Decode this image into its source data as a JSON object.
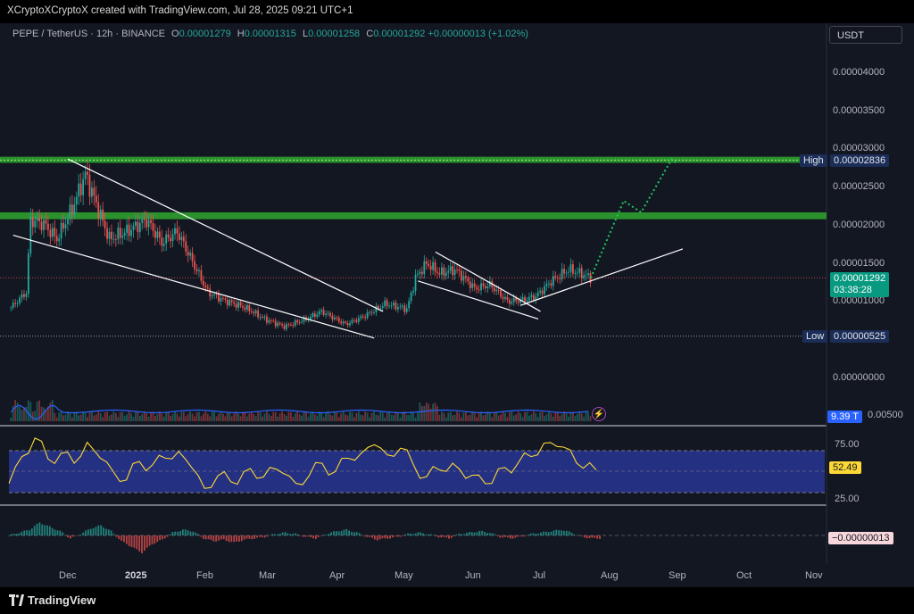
{
  "header": {
    "credit": "XCryptoXCryptoX created with TradingView.com, Jul 28, 2025 09:21 UTC+1"
  },
  "legend": {
    "symbol": "PEPE / TetherUS · 12h · BINANCE",
    "o_label": "O",
    "o": "0.00001279",
    "h_label": "H",
    "h": "0.00001315",
    "l_label": "L",
    "l": "0.00001258",
    "c_label": "C",
    "c": "0.00001292",
    "change": "+0.00000013 (+1.02%)"
  },
  "currency": "USDT",
  "price_axis": [
    "0.00004000",
    "0.00003500",
    "0.00003000",
    "0.00002500",
    "0.00002000",
    "0.00001500",
    "0.00001000",
    "0.00000000"
  ],
  "tags": {
    "high_label": "High",
    "high_value": "0.00002836",
    "last_price": "0.00001292",
    "countdown": "03:38:28",
    "low_label": "Low",
    "low_value": "0.00000525",
    "volume": "9.39 T",
    "volume_axis": "0.00500",
    "rsi_value": "52.49",
    "rsi_upper": "75.00",
    "rsi_lower": "25.00",
    "macd_value": "−0.00000013"
  },
  "time_axis": [
    {
      "label": "Dec",
      "bold": false
    },
    {
      "label": "2025",
      "bold": true
    },
    {
      "label": "Feb",
      "bold": false
    },
    {
      "label": "Mar",
      "bold": false
    },
    {
      "label": "Apr",
      "bold": false
    },
    {
      "label": "May",
      "bold": false
    },
    {
      "label": "Jun",
      "bold": false
    },
    {
      "label": "Jul",
      "bold": false
    },
    {
      "label": "Aug",
      "bold": false
    },
    {
      "label": "Sep",
      "bold": false
    },
    {
      "label": "Oct",
      "bold": false
    },
    {
      "label": "Nov",
      "bold": false
    }
  ],
  "footer": {
    "brand": "TradingView"
  },
  "colors": {
    "background": "#131722",
    "up": "#26a69a",
    "down": "#ef5350",
    "zone": "#2e9e2e",
    "projection": "#22c55e",
    "trendline": "#ffffff",
    "rsi_line": "#fdd835",
    "rsi_band": "#283593",
    "volume_ma": "#2962ff"
  },
  "chart_data": {
    "type": "candlestick",
    "symbol": "PEPE / TetherUS",
    "interval": "12h",
    "exchange": "BINANCE",
    "y_range": [
      0.0,
      4.3e-05
    ],
    "key_levels": {
      "high": 2.836e-05,
      "low": 5.25e-06,
      "last": 1.292e-05
    },
    "resistance_zones": [
      {
        "from": 2.8e-05,
        "to": 2.88e-05
      },
      {
        "from": 2.06e-05,
        "to": 2.15e-05
      }
    ],
    "price_path": [
      {
        "date": "2024-11-05",
        "price": 9e-06
      },
      {
        "date": "2024-11-12",
        "price": 1.1e-05
      },
      {
        "date": "2024-11-14",
        "price": 2.05e-05
      },
      {
        "date": "2024-11-20",
        "price": 2e-05
      },
      {
        "date": "2024-11-26",
        "price": 1.8e-05
      },
      {
        "date": "2024-12-03",
        "price": 2.2e-05
      },
      {
        "date": "2024-12-09",
        "price": 2.65e-05
      },
      {
        "date": "2024-12-16",
        "price": 2.1e-05
      },
      {
        "date": "2024-12-20",
        "price": 1.8e-05
      },
      {
        "date": "2024-12-28",
        "price": 1.9e-05
      },
      {
        "date": "2025-01-06",
        "price": 2.05e-05
      },
      {
        "date": "2025-01-13",
        "price": 1.75e-05
      },
      {
        "date": "2025-01-20",
        "price": 1.9e-05
      },
      {
        "date": "2025-01-27",
        "price": 1.5e-05
      },
      {
        "date": "2025-02-03",
        "price": 1.1e-05
      },
      {
        "date": "2025-02-10",
        "price": 1e-05
      },
      {
        "date": "2025-02-20",
        "price": 9e-06
      },
      {
        "date": "2025-03-01",
        "price": 7.5e-06
      },
      {
        "date": "2025-03-10",
        "price": 6.5e-06
      },
      {
        "date": "2025-03-20",
        "price": 7.5e-06
      },
      {
        "date": "2025-03-27",
        "price": 8.5e-06
      },
      {
        "date": "2025-04-07",
        "price": 6.8e-06
      },
      {
        "date": "2025-04-15",
        "price": 7.8e-06
      },
      {
        "date": "2025-04-25",
        "price": 9.5e-06
      },
      {
        "date": "2025-05-05",
        "price": 8.8e-06
      },
      {
        "date": "2025-05-09",
        "price": 1.3e-05
      },
      {
        "date": "2025-05-14",
        "price": 1.48e-05
      },
      {
        "date": "2025-05-20",
        "price": 1.35e-05
      },
      {
        "date": "2025-05-27",
        "price": 1.4e-05
      },
      {
        "date": "2025-06-05",
        "price": 1.15e-05
      },
      {
        "date": "2025-06-12",
        "price": 1.2e-05
      },
      {
        "date": "2025-06-20",
        "price": 9.8e-06
      },
      {
        "date": "2025-06-27",
        "price": 1e-05
      },
      {
        "date": "2025-07-03",
        "price": 1.05e-05
      },
      {
        "date": "2025-07-10",
        "price": 1.25e-05
      },
      {
        "date": "2025-07-18",
        "price": 1.4e-05
      },
      {
        "date": "2025-07-23",
        "price": 1.35e-05
      },
      {
        "date": "2025-07-28",
        "price": 1.29e-05
      }
    ],
    "projection": [
      {
        "date": "2025-07-28",
        "price": 1.29e-05
      },
      {
        "date": "2025-08-12",
        "price": 2.3e-05
      },
      {
        "date": "2025-08-20",
        "price": 2.15e-05
      },
      {
        "date": "2025-09-03",
        "price": 2.85e-05
      },
      {
        "date": "2025-09-05",
        "price": 2.8e-05
      }
    ],
    "trendlines": [
      {
        "from": [
          "2024-11-06",
          1.85e-05
        ],
        "to": [
          "2025-04-20",
          5e-06
        ]
      },
      {
        "from": [
          "2024-12-01",
          2.85e-05
        ],
        "to": [
          "2025-04-24",
          8.5e-06
        ]
      },
      {
        "from": [
          "2025-05-10",
          1.25e-05
        ],
        "to": [
          "2025-07-04",
          7.5e-06
        ]
      },
      {
        "from": [
          "2025-05-18",
          1.63e-05
        ],
        "to": [
          "2025-07-05",
          8.5e-06
        ]
      },
      {
        "from": [
          "2025-06-26",
          9.3e-06
        ],
        "to": [
          "2025-09-08",
          1.67e-05
        ]
      }
    ],
    "volume_last": "9.39 T",
    "rsi": {
      "last": 52.49,
      "upper": 75,
      "lower": 25,
      "path": [
        36,
        68,
        90,
        65,
        72,
        60,
        85,
        66,
        50,
        40,
        62,
        58,
        66,
        74,
        55,
        30,
        45,
        38,
        50,
        42,
        55,
        48,
        36,
        45,
        60,
        50,
        66,
        72,
        82,
        70,
        78,
        58,
        44,
        52,
        60,
        42,
        46,
        36,
        55,
        60,
        68,
        84,
        80,
        76,
        54,
        52
      ]
    },
    "macd": {
      "last": -1.3e-07,
      "hist": [
        0,
        2,
        4,
        9,
        6,
        3,
        -2,
        1,
        5,
        7,
        3,
        -4,
        -8,
        -12,
        -6,
        -3,
        2,
        4,
        3,
        -2,
        -4,
        -3,
        -5,
        -3,
        -2,
        -1,
        1,
        2,
        1,
        -1,
        -2,
        1,
        3,
        4,
        2,
        -1,
        -3,
        -2,
        -1,
        1,
        2,
        1,
        -1,
        -2,
        1,
        2,
        3,
        2,
        -1,
        -2,
        -1,
        1,
        2,
        3,
        4,
        2,
        -1,
        -2
      ]
    }
  }
}
